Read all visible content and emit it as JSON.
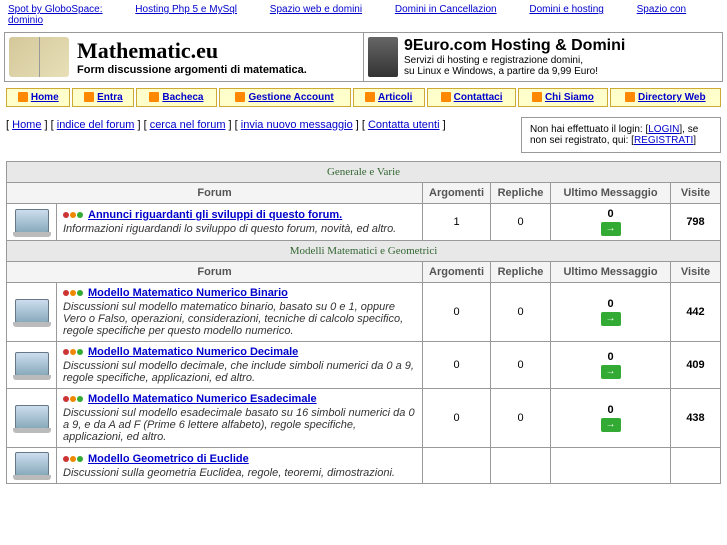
{
  "top_links": {
    "spot": "Spot by GloboSpace:",
    "l1": "Hosting Php 5 e MySql",
    "l2": "Spazio web e domini",
    "l3": "Domini in Cancellazion",
    "l4": "Domini e hosting",
    "l5": "Spazio con dominio"
  },
  "banner": {
    "left_title": "Mathematic.eu",
    "left_sub": "Form discussione argomenti di matematica.",
    "right_title": "9Euro.com Hosting & Domini",
    "right_l1": "Servizi di hosting e registrazione domini,",
    "right_l2": "su Linux e Windows, a partire da 9,99 Euro!"
  },
  "nav": {
    "home": "Home",
    "entra": "Entra",
    "bacheca": "Bacheca",
    "gestione": "Gestione Account",
    "articoli": "Articoli",
    "contattaci": "Contattaci",
    "chisiamo": "Chi Siamo",
    "directory": "Directory Web"
  },
  "breadcrumb": {
    "home": "Home",
    "indice": "indice del forum",
    "cerca": "cerca nel forum",
    "invia": "invia nuovo messaggio",
    "contatta": "Contatta utenti"
  },
  "login_box": {
    "line1_a": "Non hai effettuato il login: [",
    "login": "LOGIN",
    "line1_b": "], se",
    "line2_a": "non sei registrato, qui: [",
    "registrati": "REGISTRATI",
    "line2_b": "]"
  },
  "cols": {
    "forum": "Forum",
    "argomenti": "Argomenti",
    "repliche": "Repliche",
    "ultimo": "Ultimo Messaggio",
    "visite": "Visite"
  },
  "sections": [
    {
      "title": "Generale e Varie",
      "forums": [
        {
          "name": "Annunci riguardanti gli sviluppi di questo forum.",
          "desc": "Informazioni riguardandi lo sviluppo di questo forum, novità, ed altro.",
          "topics": "1",
          "replies": "0",
          "lastmsg": "0",
          "visits": "798"
        }
      ]
    },
    {
      "title": "Modelli Matematici e Geometrici",
      "forums": [
        {
          "name": "Modello Matematico Numerico Binario",
          "desc": "Discussioni sul modello matematico binario, basato su 0 e 1, oppure Vero o Falso, operazioni, considerazioni, tecniche di calcolo specifico, regole specifiche per questo modello numerico.",
          "topics": "0",
          "replies": "0",
          "lastmsg": "0",
          "visits": "442"
        },
        {
          "name": "Modello Matematico Numerico Decimale",
          "desc": "Discussioni sul modello decimale, che include simboli numerici da 0 a 9, regole specifiche, applicazioni, ed altro.",
          "topics": "0",
          "replies": "0",
          "lastmsg": "0",
          "visits": "409"
        },
        {
          "name": "Modello Matematico Numerico Esadecimale",
          "desc": "Discussioni sul modello esadecimale basato su 16 simboli numerici da 0 a 9, e da A ad F (Prime 6 lettere alfabeto), regole specifiche, applicazioni, ed altro.",
          "topics": "0",
          "replies": "0",
          "lastmsg": "0",
          "visits": "438"
        },
        {
          "name": "Modello Geometrico di Euclide",
          "desc": "Discussioni sulla geometria Euclidea, regole, teoremi, dimostrazioni.",
          "topics": "",
          "replies": "",
          "lastmsg": "",
          "visits": ""
        }
      ]
    }
  ]
}
